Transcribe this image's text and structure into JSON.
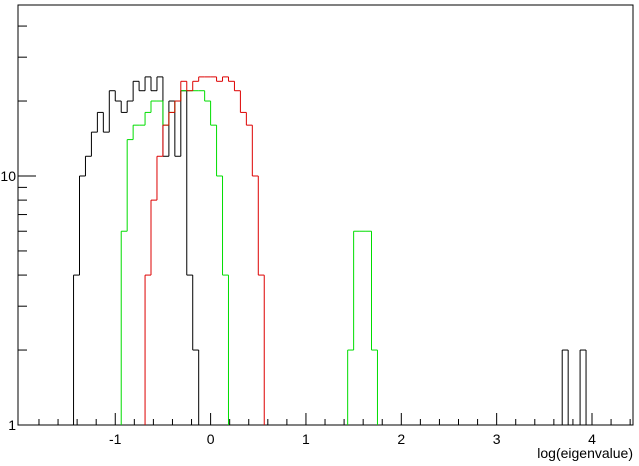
{
  "chart_data": {
    "type": "histogram",
    "x_label": "log(eigenvalue)",
    "log_y": true,
    "xlim": [
      -2.02,
      4.43
    ],
    "ylim": [
      1,
      48.6
    ],
    "xticks": [
      -1,
      0,
      1,
      2,
      3,
      4
    ],
    "xminor": [
      -1.8,
      -1.6,
      -1.4,
      -1.2,
      -0.8,
      -0.6,
      -0.4,
      -0.2,
      0.2,
      0.4,
      0.6,
      0.8,
      1.2,
      1.4,
      1.6,
      1.8,
      2.2,
      2.4,
      2.6,
      2.8,
      3.2,
      3.4,
      3.6,
      3.8,
      4.2,
      4.4
    ],
    "yticks": [
      1,
      10
    ],
    "yminor": [
      2,
      3,
      4,
      5,
      6,
      7,
      8,
      9,
      20,
      30,
      40
    ],
    "series": [
      {
        "color": "#000000",
        "bins": [
          -1.4375,
          -1.375,
          -1.3125,
          -1.25,
          -1.1875,
          -1.125,
          -1.0625,
          -1.0,
          -0.9375,
          -0.875,
          -0.8125,
          -0.75,
          -0.6875,
          -0.625,
          -0.5625,
          -0.5,
          -0.4375,
          -0.375,
          -0.3125,
          -0.25,
          -0.1875,
          -0.125
        ],
        "values": [
          4,
          10,
          12,
          15,
          18,
          15,
          22,
          20,
          18,
          20,
          24,
          22,
          25,
          22,
          25,
          12,
          20,
          12,
          22,
          4,
          2
        ]
      },
      {
        "color": "#000000",
        "bins": [
          3.6875,
          3.75,
          3.8125,
          3.875,
          3.9375
        ],
        "values": [
          2,
          1,
          1,
          2
        ]
      },
      {
        "color": "#00dd00",
        "bins": [
          -0.9375,
          -0.875,
          -0.8125,
          -0.75,
          -0.6875,
          -0.625,
          -0.5625,
          -0.5,
          -0.4375,
          -0.375,
          -0.3125,
          -0.25,
          -0.1875,
          -0.125,
          -0.0625,
          0.0,
          0.0625,
          0.125,
          0.1875
        ],
        "values": [
          6,
          14,
          16,
          16,
          18,
          20,
          20,
          16,
          18,
          20,
          22,
          22,
          22,
          22,
          20,
          16,
          10,
          4
        ]
      },
      {
        "color": "#00dd00",
        "bins": [
          1.4375,
          1.5,
          1.5625,
          1.625,
          1.6875,
          1.75
        ],
        "values": [
          2,
          6,
          6,
          6,
          2
        ]
      },
      {
        "color": "#dd0000",
        "bins": [
          -0.6875,
          -0.625,
          -0.5625,
          -0.5,
          -0.4375,
          -0.375,
          -0.3125,
          -0.25,
          -0.1875,
          -0.125,
          -0.0625,
          0.0,
          0.0625,
          0.125,
          0.1875,
          0.25,
          0.3125,
          0.375,
          0.4375,
          0.5,
          0.5625
        ],
        "values": [
          4,
          8,
          12,
          16,
          18,
          20,
          24,
          22,
          24,
          25,
          25,
          25,
          24,
          25,
          24,
          22,
          18,
          16,
          10,
          4
        ]
      }
    ]
  }
}
